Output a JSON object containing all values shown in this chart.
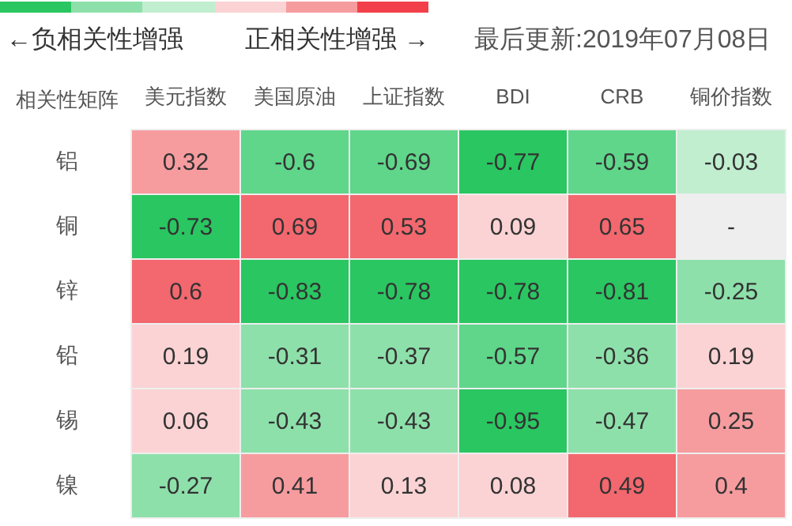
{
  "chart_data": {
    "type": "heatmap",
    "ylabel": "相关性矩阵",
    "annotations": [
      "←负相关性增强",
      "正相关性增强 →",
      "最后更新:2019年07月08日"
    ],
    "categories": [
      "美元指数",
      "美国原油",
      "上证指数",
      "BDI",
      "CRB",
      "铜价指数"
    ],
    "y_categories": [
      "铝",
      "铜",
      "锌",
      "铅",
      "锡",
      "镍"
    ],
    "cells": [
      [
        0.32,
        -0.6,
        -0.69,
        -0.77,
        -0.59,
        -0.03
      ],
      [
        -0.73,
        0.69,
        0.53,
        0.09,
        0.65,
        null
      ],
      [
        0.6,
        -0.83,
        -0.78,
        -0.78,
        -0.81,
        -0.25
      ],
      [
        0.19,
        -0.31,
        -0.37,
        -0.57,
        -0.36,
        0.19
      ],
      [
        0.06,
        -0.43,
        -0.43,
        -0.95,
        -0.47,
        0.25
      ],
      [
        -0.27,
        0.41,
        0.13,
        0.08,
        0.49,
        0.4
      ]
    ],
    "cell_labels": [
      [
        "0.32",
        "-0.6",
        "-0.69",
        "-0.77",
        "-0.59",
        "-0.03"
      ],
      [
        "-0.73",
        "0.69",
        "0.53",
        "0.09",
        "0.65",
        "-"
      ],
      [
        "0.6",
        "-0.83",
        "-0.78",
        "-0.78",
        "-0.81",
        "-0.25"
      ],
      [
        "0.19",
        "-0.31",
        "-0.37",
        "-0.57",
        "-0.36",
        "0.19"
      ],
      [
        "0.06",
        "-0.43",
        "-0.43",
        "-0.95",
        "-0.47",
        "0.25"
      ],
      [
        "-0.27",
        "0.41",
        "0.13",
        "0.08",
        "0.49",
        "0.4"
      ]
    ]
  }
}
